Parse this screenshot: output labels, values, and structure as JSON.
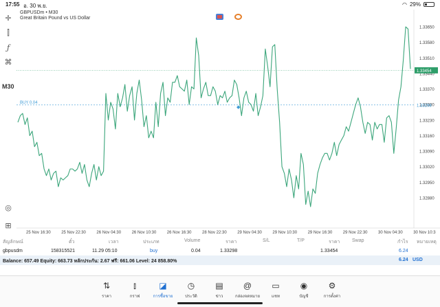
{
  "status": {
    "time": "17:55",
    "date": "อ. 30 พ.ย.",
    "battery": "29%",
    "battery_level": 0.29
  },
  "left_toolbar": {
    "timeframe": "M30"
  },
  "chart_header": {
    "symbol_line": "GBPUSDm • M30",
    "description": "Great Britain Pound vs US Dollar"
  },
  "colors": {
    "line": "#3aa57a",
    "buy_line": "#3d9bd6",
    "bid_line": "#2f9e6a",
    "accent": "#1f6fd1"
  },
  "chart_data": {
    "type": "line",
    "title": "",
    "xlabel": "",
    "ylabel": "",
    "ylim": [
      1.3275,
      1.337
    ],
    "y_ticks": [
      "1.33650",
      "1.33580",
      "1.33510",
      "1.33440",
      "1.33370",
      "1.33300",
      "1.33230",
      "1.33160",
      "1.33090",
      "1.33020",
      "1.32950",
      "1.32880"
    ],
    "x_ticks": [
      "25 Nov 16:30",
      "25 Nov 22:30",
      "26 Nov 04:30",
      "26 Nov 10:30",
      "26 Nov 16:30",
      "28 Nov 22:30",
      "29 Nov 04:30",
      "29 Nov 10:30",
      "29 Nov 16:30",
      "29 Nov 22:30",
      "30 Nov 04:30",
      "30 Nov 10:3"
    ],
    "values": [
      1.3322,
      1.3325,
      1.3326,
      1.3321,
      1.3324,
      1.3316,
      1.3318,
      1.3311,
      1.3313,
      1.3307,
      1.3308,
      1.3301,
      1.3298,
      1.3301,
      1.3296,
      1.3299,
      1.33,
      1.3293,
      1.3297,
      1.3296,
      1.3297,
      1.3298,
      1.3301,
      1.3301,
      1.33,
      1.3301,
      1.3304,
      1.3299,
      1.3303,
      1.3296,
      1.3293,
      1.3299,
      1.3303,
      1.3296,
      1.3302,
      1.3298,
      1.33,
      1.3335,
      1.3323,
      1.3331,
      1.3328,
      1.3319,
      1.3335,
      1.3329,
      1.3333,
      1.3339,
      1.3327,
      1.3334,
      1.3338,
      1.3323,
      1.3335,
      1.3341,
      1.3332,
      1.332,
      1.3325,
      1.3315,
      1.3318,
      1.3315,
      1.3331,
      1.332,
      1.3335,
      1.334,
      1.3325,
      1.3333,
      1.3331,
      1.334,
      1.334,
      1.3343,
      1.3338,
      1.3337,
      1.3336,
      1.3341,
      1.333,
      1.3338,
      1.3337,
      1.336,
      1.3352,
      1.3333,
      1.3337,
      1.334,
      1.3334,
      1.3334,
      1.3338,
      1.3336,
      1.333,
      1.3334,
      1.3333,
      1.3336,
      1.3331,
      1.3333,
      1.3334,
      1.3341,
      1.3339,
      1.3333,
      1.3325,
      1.3333,
      1.3336,
      1.3331,
      1.333,
      1.3327,
      1.3335,
      1.3325,
      1.3329,
      1.3334,
      1.3355,
      1.3347,
      1.3338,
      1.3356,
      1.3357,
      1.3337,
      1.3322,
      1.3302,
      1.3299,
      1.3293,
      1.3301,
      1.3296,
      1.3288,
      1.3298,
      1.3292,
      1.3308,
      1.3303,
      1.3285,
      1.3291,
      1.3284,
      1.3292,
      1.329,
      1.3299,
      1.3303,
      1.3306,
      1.3308,
      1.3308,
      1.3305,
      1.3308,
      1.3313,
      1.3307,
      1.3312,
      1.3314,
      1.3316,
      1.332,
      1.3318,
      1.3322,
      1.3326,
      1.333,
      1.3333,
      1.3329,
      1.3322,
      1.3317,
      1.3322,
      1.3321,
      1.3314,
      1.3322,
      1.3319,
      1.3321,
      1.3321,
      1.3313,
      1.3324,
      1.3325,
      1.3322,
      1.3308,
      1.3319,
      1.3332,
      1.3338,
      1.335,
      1.3365,
      1.3364,
      1.3346
    ],
    "buy_line": {
      "label": "BUY 0.04",
      "value": 1.33298,
      "price_label": "1.33298"
    },
    "bid_line": {
      "value": 1.33454,
      "price_label": "1.33454"
    },
    "grid": false,
    "legend": "none"
  },
  "table": {
    "headers": [
      "สัญลักษณ์",
      "ตั๋ว",
      "เวลา",
      "ประเภท",
      "Volume",
      "ราคา",
      "S/L",
      "T/P",
      "ราคา",
      "Swap",
      "กำไร",
      "หมายเหตุ"
    ],
    "rows": [
      {
        "symbol": "gbpusdm",
        "ticket": "158315521",
        "time": "11.29 05:10",
        "type": "buy",
        "volume": "0.04",
        "price_open": "1.33298",
        "sl": "",
        "tp": "",
        "price_current": "1.33454",
        "swap": "",
        "profit": "6.24",
        "comment": ""
      }
    ],
    "balance_line": "Balance: 657.49 Equity: 663.73 หลักประกัน: 2.67 ฟรี: 661.06 Level: 24 858.80%",
    "total_profit": "6.24",
    "currency": "USD"
  },
  "tabs": [
    {
      "label": "ราคา",
      "icon": "arrows-updown-icon"
    },
    {
      "label": "กราฟ",
      "icon": "candles-icon"
    },
    {
      "label": "การซื้อขาย",
      "icon": "trade-chart-icon",
      "active": true
    },
    {
      "label": "ประวัติ",
      "icon": "history-icon"
    },
    {
      "label": "ข่าว",
      "icon": "news-icon"
    },
    {
      "label": "กล่องจดหมาย",
      "icon": "mail-at-icon"
    },
    {
      "label": "แชท",
      "icon": "chat-icon"
    },
    {
      "label": "บัญชี",
      "icon": "account-icon"
    },
    {
      "label": "การตั้งค่า",
      "icon": "settings-icon"
    }
  ]
}
